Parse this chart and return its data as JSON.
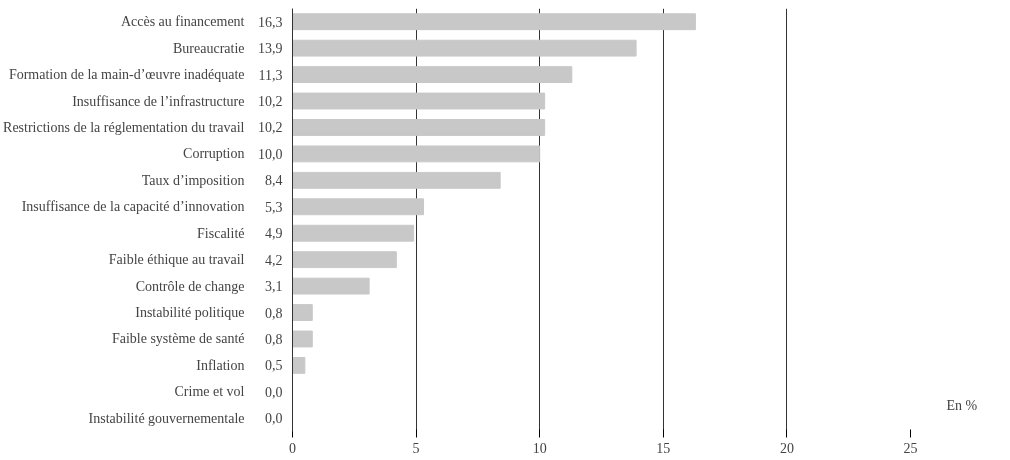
{
  "chart_data": {
    "type": "bar",
    "orientation": "horizontal",
    "categories": [
      "Accès au financement",
      "Bureaucratie",
      "Formation de la main-d’œuvre inadéquate",
      "Insuffisance de l’infrastructure",
      "Restrictions de la réglementation du travail",
      "Corruption",
      "Taux d’imposition",
      "Insuffisance de la capacité d’innovation",
      "Fiscalité",
      "Faible éthique au travail",
      "Contrôle de change",
      "Instabilité politique",
      "Faible système de santé",
      "Inflation",
      "Crime et vol",
      "Instabilité gouvernementale"
    ],
    "values": [
      16.3,
      13.9,
      11.3,
      10.2,
      10.2,
      10.0,
      8.4,
      5.3,
      4.9,
      4.2,
      3.1,
      0.8,
      0.8,
      0.5,
      0.0,
      0.0
    ],
    "value_labels": [
      "16,3",
      "13,9",
      "11,3",
      "10,2",
      "10,2",
      "10,0",
      "8,4",
      "5,3",
      "4,9",
      "4,2",
      "3,1",
      "0,8",
      "0,8",
      "0,5",
      "0,0",
      "0,0"
    ],
    "color": "#c8c8c8",
    "xlim": [
      0,
      25
    ],
    "xticks": [
      0,
      5,
      10,
      15,
      20,
      25
    ],
    "grid": "x",
    "annotations": [
      "En %"
    ]
  }
}
